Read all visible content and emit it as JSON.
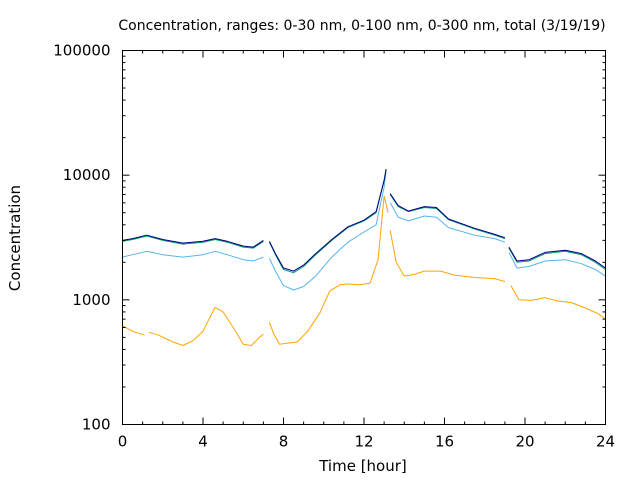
{
  "chart_data": {
    "type": "line",
    "title": "Concentration, ranges: 0-30 nm, 0-100 nm, 0-300 nm, total (3/19/19)",
    "xlabel": "Time [hour]",
    "ylabel": "Concentration",
    "xlim": [
      0,
      24
    ],
    "ylim": [
      100,
      100000
    ],
    "yscale": "log",
    "grid": false,
    "legend": "none",
    "x_ticks": [
      0,
      4,
      8,
      12,
      16,
      20,
      24
    ],
    "x_tick_labels": [
      "0",
      "4",
      "8",
      "12",
      "16",
      "20",
      "24"
    ],
    "y_ticks": [
      100,
      1000,
      10000,
      100000
    ],
    "y_tick_labels": [
      "100",
      "1000",
      "10000",
      "100000"
    ],
    "series": [
      {
        "color": "#ffa500",
        "segments": [
          [
            [
              0,
              620
            ],
            [
              0.5,
              560
            ],
            [
              1.1,
              520
            ]
          ],
          [
            [
              1.3,
              550
            ],
            [
              1.8,
              520
            ],
            [
              2.5,
              460
            ],
            [
              3,
              430
            ],
            [
              3.5,
              470
            ],
            [
              4,
              560
            ],
            [
              4.3,
              700
            ],
            [
              4.6,
              870
            ],
            [
              5,
              800
            ],
            [
              5.5,
              600
            ],
            [
              5.8,
              500
            ],
            [
              6,
              440
            ],
            [
              6.4,
              430
            ],
            [
              6.8,
              500
            ],
            [
              7,
              530
            ]
          ],
          [
            [
              7.3,
              660
            ],
            [
              7.5,
              540
            ],
            [
              7.8,
              440
            ],
            [
              8.2,
              450
            ],
            [
              8.7,
              460
            ],
            [
              9.2,
              560
            ],
            [
              9.8,
              780
            ],
            [
              10.3,
              1180
            ],
            [
              10.8,
              1320
            ],
            [
              11.2,
              1340
            ],
            [
              11.8,
              1320
            ],
            [
              12.3,
              1360
            ],
            [
              12.7,
              2100
            ],
            [
              13,
              6800
            ],
            [
              13.2,
              5000
            ]
          ],
          [
            [
              13.3,
              3600
            ],
            [
              13.6,
              2000
            ],
            [
              14,
              1550
            ],
            [
              14.5,
              1600
            ],
            [
              15,
              1700
            ],
            [
              15.8,
              1700
            ],
            [
              16.5,
              1580
            ],
            [
              17.5,
              1510
            ],
            [
              18.5,
              1480
            ],
            [
              19,
              1400
            ]
          ],
          [
            [
              19.3,
              1300
            ],
            [
              19.7,
              1000
            ],
            [
              20.3,
              990
            ],
            [
              21,
              1040
            ],
            [
              21.6,
              980
            ],
            [
              22.3,
              950
            ],
            [
              23,
              860
            ],
            [
              23.6,
              780
            ],
            [
              24,
              700
            ]
          ]
        ]
      },
      {
        "color": "#56b4e9",
        "segments": [
          [
            [
              0,
              2200
            ],
            [
              0.5,
              2300
            ],
            [
              1.2,
              2450
            ],
            [
              2,
              2300
            ],
            [
              3,
              2200
            ],
            [
              4,
              2300
            ],
            [
              4.6,
              2450
            ],
            [
              5.2,
              2300
            ],
            [
              6,
              2100
            ],
            [
              6.5,
              2050
            ],
            [
              7,
              2200
            ]
          ],
          [
            [
              7.3,
              2150
            ],
            [
              7.6,
              1700
            ],
            [
              8,
              1300
            ],
            [
              8.5,
              1200
            ],
            [
              9,
              1280
            ],
            [
              9.6,
              1550
            ],
            [
              10.4,
              2200
            ],
            [
              11.2,
              2900
            ],
            [
              12,
              3500
            ],
            [
              12.6,
              4000
            ],
            [
              13,
              8000
            ],
            [
              13.1,
              11000
            ]
          ],
          [
            [
              13.3,
              6000
            ],
            [
              13.7,
              4600
            ],
            [
              14.2,
              4300
            ],
            [
              15,
              4700
            ],
            [
              15.6,
              4600
            ],
            [
              16.2,
              3800
            ],
            [
              17.5,
              3300
            ],
            [
              18.5,
              3100
            ],
            [
              19,
              2900
            ]
          ],
          [
            [
              19.2,
              2400
            ],
            [
              19.6,
              1800
            ],
            [
              20.2,
              1850
            ],
            [
              21,
              2050
            ],
            [
              22,
              2100
            ],
            [
              22.8,
              1950
            ],
            [
              23.5,
              1750
            ],
            [
              24,
              1550
            ]
          ]
        ]
      },
      {
        "color": "#009e73",
        "segments": [
          [
            [
              0,
              2950
            ],
            [
              0.5,
              3050
            ],
            [
              1.2,
              3250
            ],
            [
              2,
              3000
            ],
            [
              3,
              2800
            ],
            [
              4,
              2900
            ],
            [
              4.6,
              3050
            ],
            [
              5.2,
              2900
            ],
            [
              6,
              2650
            ],
            [
              6.5,
              2600
            ],
            [
              7,
              2950
            ]
          ],
          [
            [
              7.3,
              2900
            ],
            [
              7.6,
              2300
            ],
            [
              8,
              1750
            ],
            [
              8.5,
              1650
            ],
            [
              9,
              1850
            ],
            [
              9.6,
              2300
            ],
            [
              10.4,
              3000
            ],
            [
              11.2,
              3800
            ],
            [
              12,
              4300
            ],
            [
              12.6,
              5000
            ],
            [
              13,
              9000
            ],
            [
              13.1,
              11000
            ]
          ],
          [
            [
              13.3,
              7000
            ],
            [
              13.7,
              5600
            ],
            [
              14.2,
              5100
            ],
            [
              15,
              5500
            ],
            [
              15.6,
              5400
            ],
            [
              16.2,
              4400
            ],
            [
              17.5,
              3700
            ],
            [
              18.5,
              3300
            ],
            [
              19,
              3100
            ]
          ],
          [
            [
              19.2,
              2600
            ],
            [
              19.6,
              2000
            ],
            [
              20.2,
              2050
            ],
            [
              21,
              2350
            ],
            [
              22,
              2450
            ],
            [
              22.8,
              2300
            ],
            [
              23.5,
              2000
            ],
            [
              24,
              1750
            ]
          ]
        ]
      },
      {
        "color": "#000080",
        "segments": [
          [
            [
              0,
              3000
            ],
            [
              0.5,
              3100
            ],
            [
              1.2,
              3300
            ],
            [
              2,
              3050
            ],
            [
              3,
              2850
            ],
            [
              4,
              2950
            ],
            [
              4.6,
              3100
            ],
            [
              5.2,
              2950
            ],
            [
              6,
              2700
            ],
            [
              6.5,
              2650
            ],
            [
              7,
              3000
            ]
          ],
          [
            [
              7.3,
              2950
            ],
            [
              7.6,
              2350
            ],
            [
              8,
              1800
            ],
            [
              8.5,
              1700
            ],
            [
              9,
              1900
            ],
            [
              9.6,
              2350
            ],
            [
              10.4,
              3050
            ],
            [
              11.2,
              3850
            ],
            [
              12,
              4350
            ],
            [
              12.6,
              5100
            ],
            [
              13,
              9100
            ],
            [
              13.1,
              11200
            ]
          ],
          [
            [
              13.3,
              7100
            ],
            [
              13.7,
              5700
            ],
            [
              14.2,
              5150
            ],
            [
              15,
              5600
            ],
            [
              15.6,
              5500
            ],
            [
              16.2,
              4450
            ],
            [
              17.5,
              3750
            ],
            [
              18.5,
              3350
            ],
            [
              19,
              3150
            ]
          ],
          [
            [
              19.2,
              2650
            ],
            [
              19.6,
              2050
            ],
            [
              20.2,
              2100
            ],
            [
              21,
              2400
            ],
            [
              22,
              2500
            ],
            [
              22.8,
              2350
            ],
            [
              23.5,
              2050
            ],
            [
              24,
              1800
            ]
          ]
        ]
      }
    ]
  }
}
